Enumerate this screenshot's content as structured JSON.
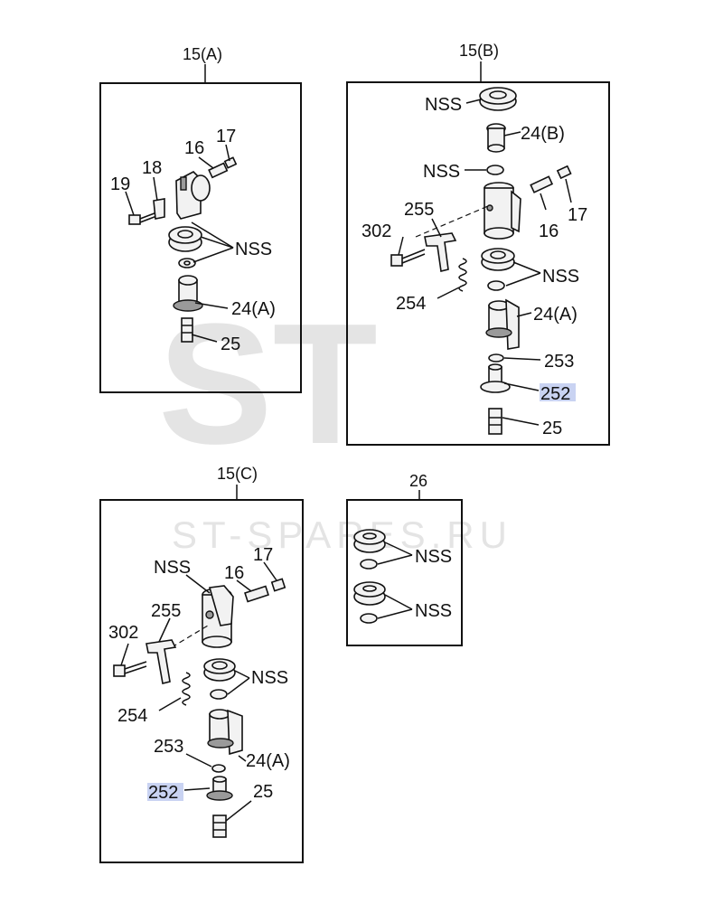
{
  "watermark": {
    "logo": "ST",
    "url": "ST-SPARES.RU"
  },
  "panels": {
    "a": {
      "title": "15(A)",
      "labels": {
        "p19": "19",
        "p18": "18",
        "p16": "16",
        "p17": "17",
        "nss": "NSS",
        "p24a": "24(A)",
        "p25": "25"
      }
    },
    "b": {
      "title": "15(B)",
      "labels": {
        "nss1": "NSS",
        "p24b": "24(B)",
        "nss2": "NSS",
        "p255": "255",
        "p302": "302",
        "p16": "16",
        "p17": "17",
        "nss3": "NSS",
        "p254": "254",
        "p24a": "24(A)",
        "p253": "253",
        "p252": "252",
        "p25": "25"
      }
    },
    "c": {
      "title": "15(C)",
      "labels": {
        "nss1": "NSS",
        "p17": "17",
        "p16": "16",
        "p255": "255",
        "p302": "302",
        "nss2": "NSS",
        "p254": "254",
        "p253": "253",
        "p24a": "24(A)",
        "p252": "252",
        "p25": "25"
      }
    },
    "d": {
      "title": "26",
      "labels": {
        "nss1": "NSS",
        "nss2": "NSS"
      }
    }
  },
  "colors": {
    "highlight": "#c9d3f2",
    "line": "#111111",
    "watermark": "#d9d9d9"
  }
}
